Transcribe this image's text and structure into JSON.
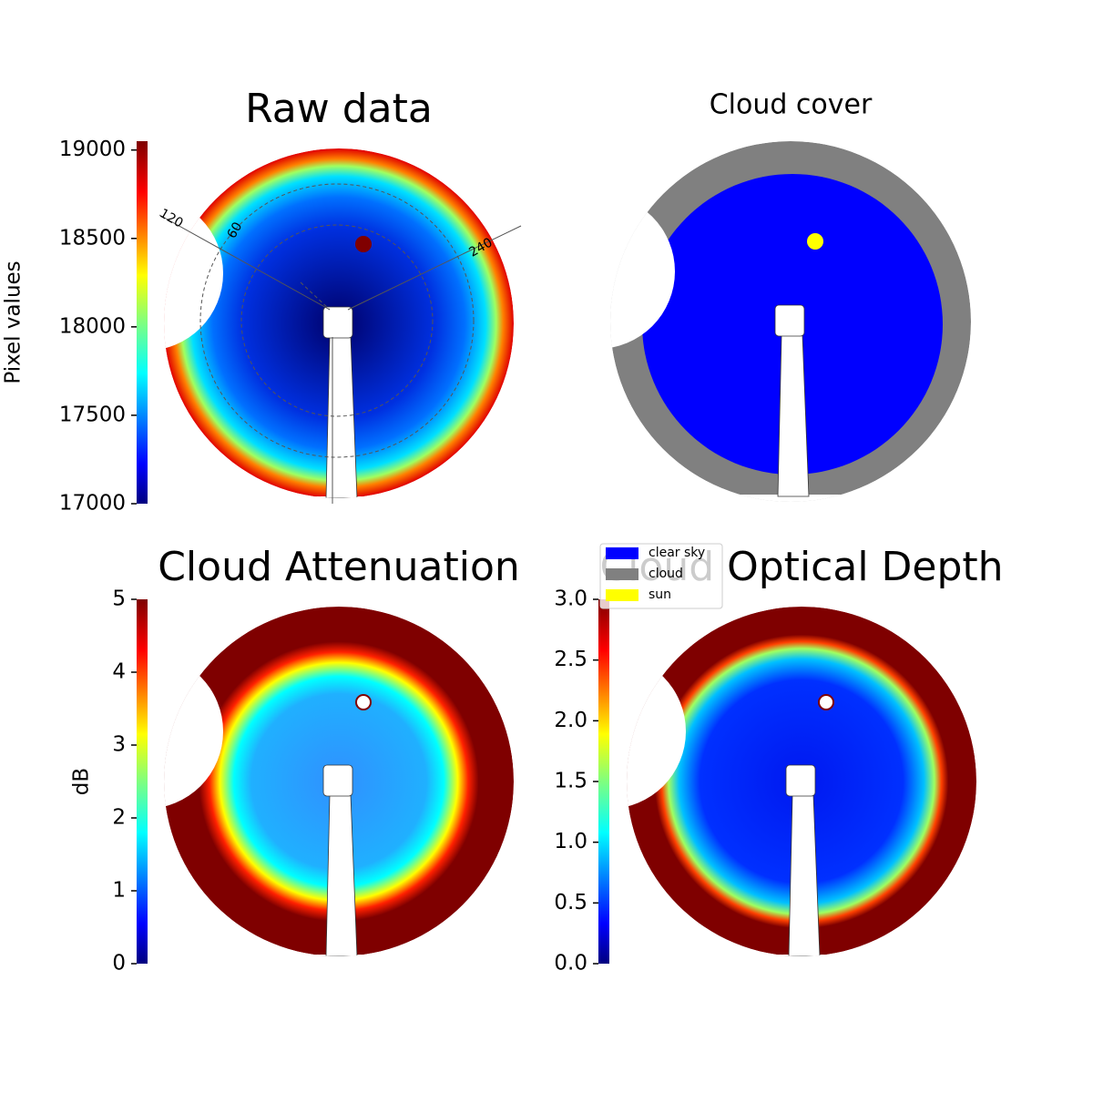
{
  "chart_data": [
    {
      "type": "image",
      "title": "Raw data",
      "colormap": "jet",
      "colorbar": {
        "label": "Pixel values",
        "lim": [
          17000,
          19050
        ],
        "ticks": [
          17000,
          17500,
          18000,
          18500,
          19000
        ]
      },
      "azimuth_labels": [
        120,
        60,
        240
      ]
    },
    {
      "type": "image",
      "title": "Cloud cover",
      "legend": [
        {
          "name": "clear sky",
          "color": "#0000ff"
        },
        {
          "name": "cloud",
          "color": "#808080"
        },
        {
          "name": "sun",
          "color": "#ffff00"
        }
      ]
    },
    {
      "type": "image",
      "title": "Cloud Attenuation",
      "colormap": "jet",
      "colorbar": {
        "label": "dB",
        "lim": [
          0,
          5
        ],
        "ticks": [
          0,
          1,
          2,
          3,
          4,
          5
        ]
      }
    },
    {
      "type": "image",
      "title": "Cloud Optical Depth",
      "colormap": "jet",
      "colorbar": {
        "lim": [
          0,
          3
        ],
        "ticks": [
          {
            "value": 0,
            "label": "0.0"
          },
          0.5,
          {
            "value": 1,
            "label": "1.0"
          },
          1.5,
          {
            "value": 2,
            "label": "2.0"
          },
          2.5,
          {
            "value": 3,
            "label": "3.0"
          }
        ]
      }
    }
  ]
}
